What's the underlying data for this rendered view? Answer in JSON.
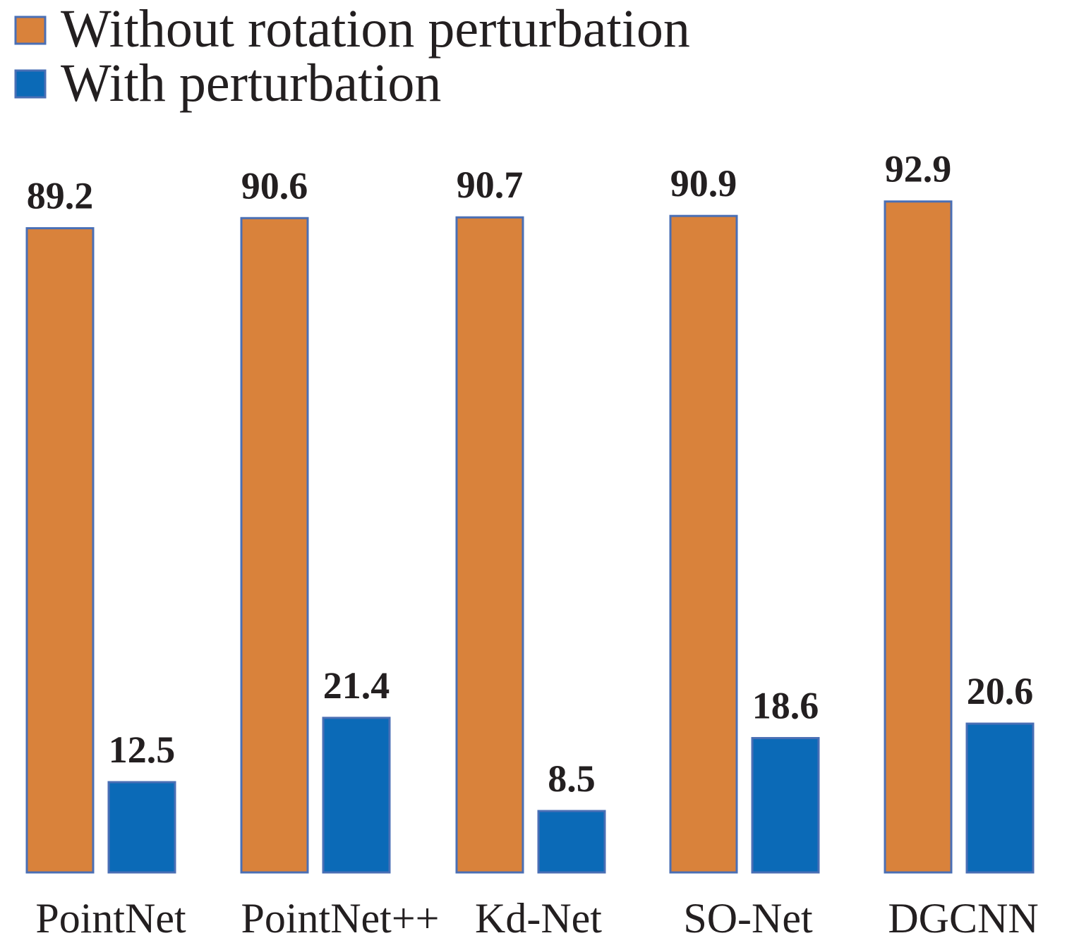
{
  "chart_data": {
    "type": "bar",
    "title": "",
    "xlabel": "",
    "ylabel": "",
    "ylim": [
      0,
      100
    ],
    "grid": false,
    "legend_position": "top-left",
    "categories": [
      "PointNet",
      "PointNet++",
      "Kd-Net",
      "SO-Net",
      "DGCNN"
    ],
    "series": [
      {
        "name": "Without rotation perturbation",
        "color": "#d9823b",
        "values": [
          89.2,
          90.6,
          90.7,
          90.9,
          92.9
        ],
        "labels": [
          "89.2",
          "90.6",
          "90.7",
          "90.9",
          "92.9"
        ]
      },
      {
        "name": "With perturbation",
        "color": "#0b6ab7",
        "values": [
          12.5,
          21.4,
          8.5,
          18.6,
          20.6
        ],
        "labels": [
          "12.5",
          "21.4",
          "8.5",
          "18.6",
          "20.6"
        ]
      }
    ],
    "bar_border_color": "#4a6fb5",
    "text_color": "#231f20"
  }
}
